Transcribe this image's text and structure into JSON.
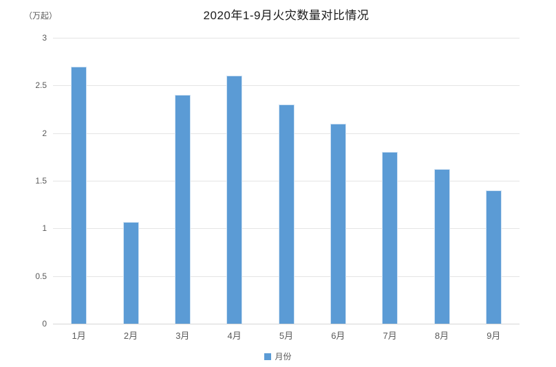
{
  "chart": {
    "unit_label": "（万起）",
    "legend_label": "月份",
    "colors": {
      "bar": "#5b9bd5",
      "gridline": "#e4e4e4",
      "axis_text": "#595959",
      "title_text": "#1a1a1a"
    }
  },
  "chart_data": {
    "type": "bar",
    "title": "2020年1-9月火灾数量对比情况",
    "categories": [
      "1月",
      "2月",
      "3月",
      "4月",
      "5月",
      "6月",
      "7月",
      "8月",
      "9月"
    ],
    "values": [
      2.7,
      1.07,
      2.4,
      2.6,
      2.3,
      2.1,
      1.8,
      1.62,
      1.4
    ],
    "xlabel": "",
    "ylabel": "（万起）",
    "ylim": [
      0,
      3
    ],
    "yticks": [
      0,
      0.5,
      1,
      1.5,
      2,
      2.5,
      3
    ],
    "grid": true,
    "legend": [
      "月份"
    ],
    "legend_position": "bottom",
    "bar_color": "#5b9bd5"
  }
}
